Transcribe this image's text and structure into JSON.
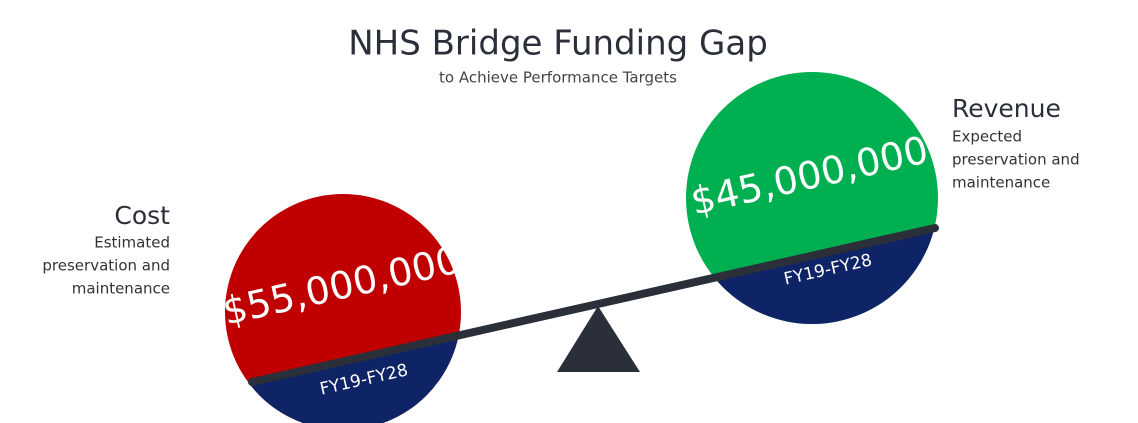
{
  "title": "NHS Bridge Funding Gap",
  "subtitle": "to Achieve Performance Targets",
  "cost": {
    "heading": "Cost",
    "description": [
      "Estimated",
      "preservation and",
      "maintenance"
    ],
    "amount": "$55,000,000",
    "period": "FY19-FY28"
  },
  "revenue": {
    "heading": "Revenue",
    "description": [
      "Expected",
      "preservation and",
      "maintenance"
    ],
    "amount": "$45,000,000",
    "period": "FY19-FY28"
  }
}
